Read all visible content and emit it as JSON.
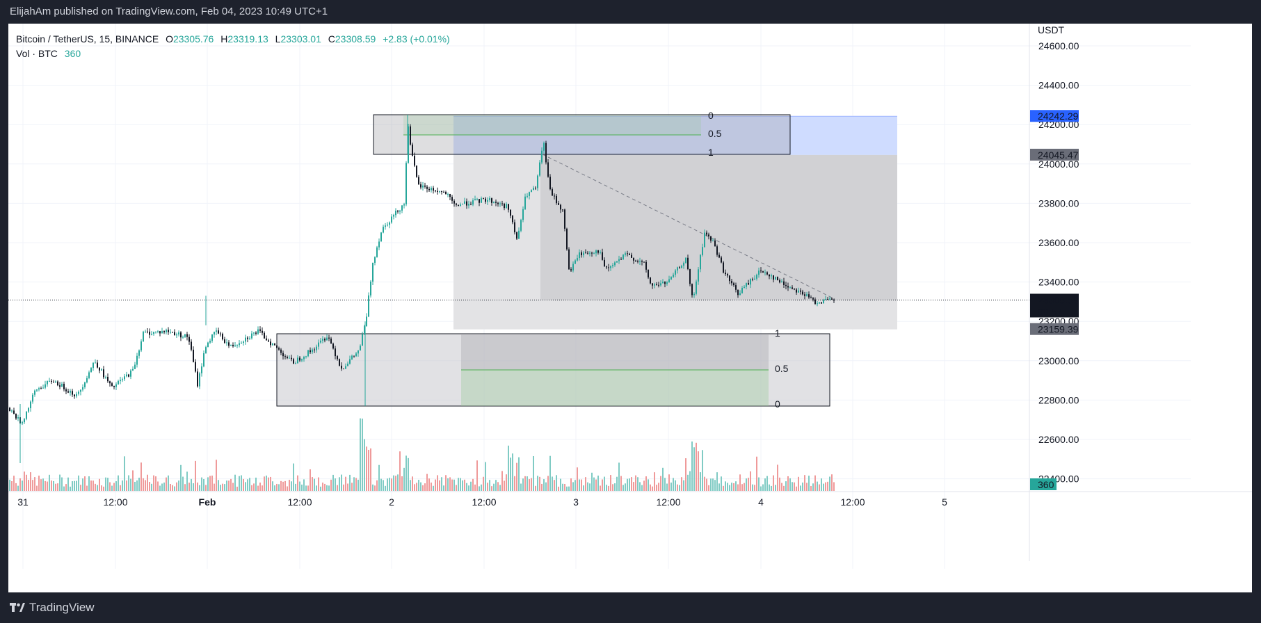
{
  "header": {
    "publish_line": "ElijahAm published on TradingView.com, Feb 04, 2023 10:49 UTC+1"
  },
  "legend": {
    "symbol": "Bitcoin / TetherUS, 15, BINANCE",
    "o_label": "O",
    "o_value": "23305.76",
    "h_label": "H",
    "h_value": "23319.13",
    "l_label": "L",
    "l_value": "23303.01",
    "c_label": "C",
    "c_value": "23308.59",
    "change": "+2.83 (+0.01%)",
    "vol_label": "Vol · BTC",
    "vol_value": "360"
  },
  "footer": {
    "brand": "TradingView"
  },
  "colors": {
    "up": "#26a69a",
    "down": "#131722",
    "vol_up": "#80cbc4",
    "vol_down": "#ef9a9a",
    "blue_badge": "#2962ff",
    "grey_badge": "#6a6d78",
    "black_badge": "#131722",
    "vol_badge": "#26a69a"
  },
  "chart_data": {
    "type": "candlestick",
    "currency_label": "USDT",
    "y_ticks": [
      "24600.00",
      "24400.00",
      "24200.00",
      "24000.00",
      "23800.00",
      "23600.00",
      "23400.00",
      "23200.00",
      "23000.00",
      "22800.00",
      "22600.00",
      "22400.00"
    ],
    "x_ticks": [
      "31",
      "12:00",
      "Feb",
      "12:00",
      "2",
      "12:00",
      "3",
      "12:00",
      "4",
      "12:00",
      "5"
    ],
    "ylim": [
      22180,
      24780
    ],
    "price_badges": [
      {
        "label": "24242.29",
        "value": 24242.29,
        "color": "blue"
      },
      {
        "label": "24045.47",
        "value": 24045.47,
        "color": "grey"
      },
      {
        "label": "23308.59",
        "sub": "09:57",
        "value": 23308.59,
        "color": "black"
      },
      {
        "label": "23159.39",
        "value": 23159.39,
        "color": "grey"
      }
    ],
    "volume_badge": "360",
    "last_price": 23308.59,
    "fib_upper": {
      "levels": [
        "0",
        "0.5",
        "1"
      ],
      "top": 24242.29,
      "bottom": 24045.47
    },
    "fib_lower": {
      "levels": [
        "1",
        "0.5",
        "0"
      ],
      "top": 23159.39,
      "bottom": 22780
    }
  }
}
